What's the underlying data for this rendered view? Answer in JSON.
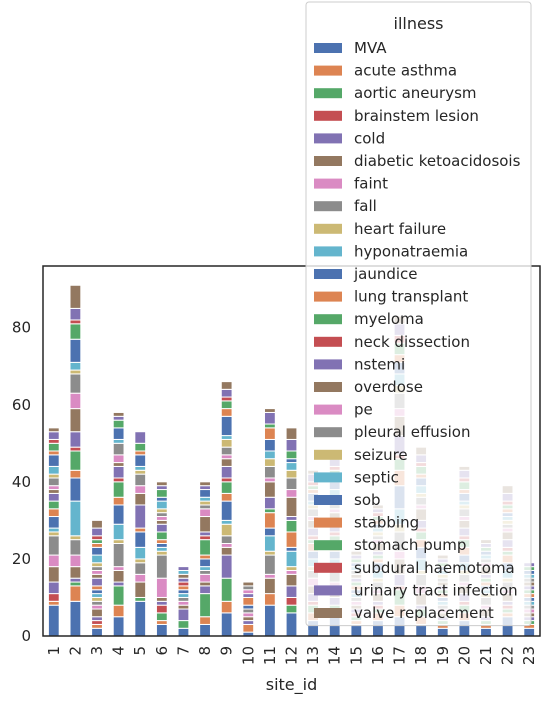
{
  "chart_data": {
    "type": "bar",
    "stacked": true,
    "xlabel": "site_id",
    "ylabel": "",
    "ylim": [
      0,
      96
    ],
    "yticks": [
      0,
      20,
      40,
      60,
      80
    ],
    "grid": false,
    "legend_title": "illness",
    "legend_position": "upper-right",
    "categories": [
      "1",
      "2",
      "3",
      "4",
      "5",
      "6",
      "7",
      "8",
      "9",
      "10",
      "11",
      "12",
      "13",
      "14",
      "15",
      "16",
      "17",
      "18",
      "19",
      "20",
      "21",
      "22",
      "23"
    ],
    "series": [
      {
        "name": "MVA",
        "color": "#4c72b0",
        "values": [
          8,
          9,
          2,
          5,
          9,
          3,
          2,
          3,
          6,
          1,
          8,
          6,
          4,
          5,
          3,
          4,
          5,
          3,
          2,
          4,
          2,
          5,
          2
        ]
      },
      {
        "name": "acute asthma",
        "color": "#dd8452",
        "values": [
          1,
          4,
          1,
          3,
          0,
          1,
          0,
          2,
          3,
          2,
          3,
          0,
          2,
          1,
          1,
          2,
          3,
          2,
          1,
          2,
          1,
          1,
          1
        ]
      },
      {
        "name": "aortic aneurysm",
        "color": "#55a868",
        "values": [
          0,
          1,
          0,
          5,
          1,
          2,
          2,
          6,
          6,
          0,
          0,
          2,
          2,
          2,
          1,
          1,
          4,
          2,
          1,
          2,
          1,
          1,
          1
        ]
      },
      {
        "name": "brainstem lesion",
        "color": "#c44e52",
        "values": [
          2,
          0,
          1,
          0,
          0,
          2,
          0,
          0,
          0,
          0,
          0,
          2,
          1,
          0,
          1,
          1,
          1,
          0,
          0,
          1,
          0,
          1,
          0
        ]
      },
      {
        "name": "cold",
        "color": "#8172b3",
        "values": [
          3,
          1,
          1,
          1,
          0,
          1,
          3,
          2,
          6,
          1,
          0,
          3,
          2,
          2,
          1,
          1,
          3,
          1,
          1,
          2,
          1,
          1,
          1
        ]
      },
      {
        "name": "diabetic ketoacidosois",
        "color": "#937860",
        "values": [
          4,
          3,
          2,
          3,
          4,
          1,
          1,
          1,
          2,
          1,
          4,
          3,
          2,
          3,
          1,
          2,
          4,
          3,
          1,
          2,
          2,
          2,
          1
        ]
      },
      {
        "name": "faint",
        "color": "#da8bc3",
        "values": [
          3,
          3,
          1,
          1,
          2,
          5,
          1,
          2,
          1,
          1,
          1,
          1,
          2,
          1,
          1,
          1,
          2,
          2,
          1,
          1,
          1,
          1,
          1
        ]
      },
      {
        "name": "fall",
        "color": "#8c8c8c",
        "values": [
          5,
          4,
          1,
          6,
          3,
          6,
          1,
          1,
          2,
          1,
          5,
          0,
          2,
          3,
          1,
          2,
          5,
          3,
          1,
          2,
          2,
          2,
          1
        ]
      },
      {
        "name": "heart failure",
        "color": "#ccb974",
        "values": [
          1,
          1,
          1,
          1,
          1,
          1,
          0,
          0,
          3,
          0,
          1,
          1,
          1,
          1,
          0,
          1,
          2,
          1,
          0,
          1,
          1,
          1,
          0
        ]
      },
      {
        "name": "hyponatraemia",
        "color": "#64b5cd",
        "values": [
          1,
          9,
          1,
          4,
          3,
          1,
          1,
          1,
          1,
          0,
          4,
          4,
          2,
          2,
          1,
          2,
          4,
          3,
          1,
          2,
          1,
          2,
          1
        ]
      },
      {
        "name": "jaundice",
        "color": "#4c72b0",
        "values": [
          3,
          6,
          1,
          5,
          4,
          1,
          1,
          2,
          5,
          1,
          2,
          1,
          2,
          2,
          1,
          2,
          6,
          3,
          1,
          2,
          1,
          2,
          1
        ]
      },
      {
        "name": "lung transplant",
        "color": "#dd8452",
        "values": [
          2,
          2,
          1,
          2,
          1,
          1,
          1,
          1,
          2,
          2,
          4,
          4,
          2,
          2,
          1,
          1,
          4,
          2,
          1,
          2,
          1,
          2,
          1
        ]
      },
      {
        "name": "myeloma",
        "color": "#55a868",
        "values": [
          2,
          5,
          0,
          4,
          0,
          2,
          0,
          4,
          3,
          0,
          1,
          3,
          1,
          2,
          1,
          1,
          3,
          2,
          1,
          2,
          1,
          1,
          1
        ]
      },
      {
        "name": "neck dissection",
        "color": "#c44e52",
        "values": [
          0,
          1,
          0,
          1,
          0,
          0,
          1,
          1,
          1,
          0,
          0,
          0,
          1,
          1,
          0,
          0,
          1,
          1,
          0,
          1,
          0,
          1,
          0
        ]
      },
      {
        "name": "nstemi",
        "color": "#8172b3",
        "values": [
          2,
          4,
          2,
          3,
          6,
          2,
          1,
          1,
          3,
          1,
          3,
          1,
          2,
          2,
          1,
          1,
          5,
          2,
          1,
          2,
          1,
          2,
          1
        ]
      },
      {
        "name": "overdose",
        "color": "#937860",
        "values": [
          1,
          6,
          1,
          1,
          3,
          1,
          1,
          4,
          2,
          0,
          4,
          5,
          2,
          3,
          1,
          2,
          5,
          3,
          1,
          2,
          2,
          2,
          1
        ]
      },
      {
        "name": "pe",
        "color": "#da8bc3",
        "values": [
          1,
          4,
          1,
          2,
          2,
          1,
          0,
          2,
          1,
          1,
          1,
          2,
          1,
          1,
          0,
          1,
          2,
          1,
          0,
          1,
          1,
          1,
          0
        ]
      },
      {
        "name": "pleural effusion",
        "color": "#8c8c8c",
        "values": [
          2,
          5,
          1,
          3,
          3,
          1,
          0,
          1,
          2,
          1,
          3,
          3,
          2,
          2,
          1,
          1,
          4,
          2,
          1,
          2,
          1,
          1,
          1
        ]
      },
      {
        "name": "seizure",
        "color": "#ccb974",
        "values": [
          1,
          1,
          1,
          0,
          1,
          1,
          0,
          1,
          2,
          0,
          2,
          2,
          1,
          1,
          0,
          1,
          2,
          1,
          1,
          1,
          0,
          1,
          0
        ]
      },
      {
        "name": "septic",
        "color": "#64b5cd",
        "values": [
          2,
          2,
          2,
          1,
          1,
          2,
          1,
          1,
          1,
          0,
          2,
          2,
          1,
          2,
          1,
          1,
          3,
          2,
          1,
          1,
          1,
          1,
          1
        ]
      },
      {
        "name": "sob",
        "color": "#4c72b0",
        "values": [
          3,
          6,
          2,
          3,
          3,
          1,
          0,
          2,
          5,
          0,
          3,
          1,
          2,
          2,
          1,
          1,
          3,
          2,
          1,
          2,
          1,
          1,
          1
        ]
      },
      {
        "name": "stabbing",
        "color": "#dd8452",
        "values": [
          1,
          0,
          1,
          0,
          1,
          0,
          0,
          0,
          2,
          0,
          3,
          0,
          1,
          1,
          0,
          1,
          2,
          1,
          0,
          1,
          0,
          1,
          0
        ]
      },
      {
        "name": "stomach pump",
        "color": "#55a868",
        "values": [
          2,
          4,
          1,
          2,
          2,
          2,
          0,
          0,
          2,
          0,
          1,
          2,
          1,
          2,
          1,
          1,
          3,
          2,
          1,
          2,
          1,
          1,
          1
        ]
      },
      {
        "name": "subdural haemotoma",
        "color": "#c44e52",
        "values": [
          1,
          1,
          1,
          0,
          0,
          0,
          0,
          0,
          1,
          0,
          0,
          0,
          1,
          1,
          0,
          1,
          2,
          1,
          0,
          1,
          0,
          1,
          0
        ]
      },
      {
        "name": "urinary tract infection",
        "color": "#8172b3",
        "values": [
          2,
          3,
          2,
          1,
          3,
          1,
          1,
          1,
          2,
          0,
          3,
          3,
          2,
          2,
          1,
          1,
          3,
          2,
          1,
          2,
          1,
          2,
          1
        ]
      },
      {
        "name": "valve replacement",
        "color": "#937860",
        "values": [
          1,
          6,
          2,
          1,
          0,
          1,
          0,
          1,
          2,
          1,
          1,
          3,
          1,
          2,
          1,
          1,
          2,
          2,
          1,
          1,
          1,
          2,
          0
        ]
      }
    ]
  }
}
